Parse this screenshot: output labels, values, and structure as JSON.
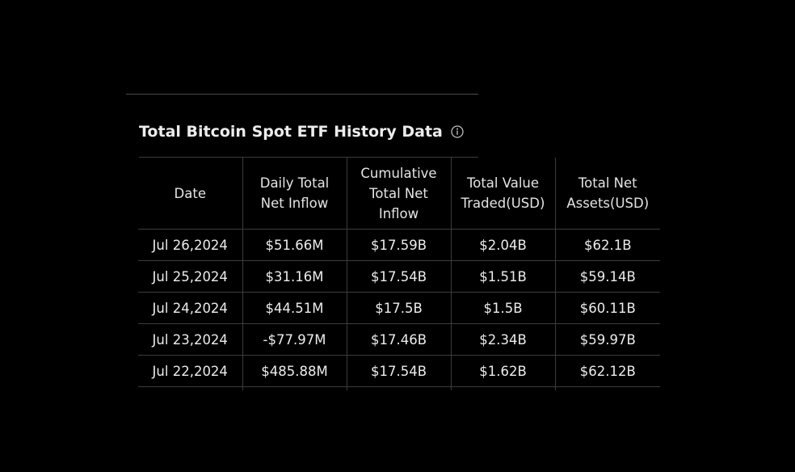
{
  "widget": {
    "title": "Total Bitcoin Spot ETF History Data",
    "info_icon": "info-circle-icon"
  },
  "table": {
    "headers": [
      "Date",
      "Daily Total Net Inflow",
      "Cumulative Total Net Inflow",
      "Total Value Traded(USD)",
      "Total Net Assets(USD)"
    ],
    "rows": [
      {
        "date": "Jul 26,2024",
        "daily_net_inflow": "$51.66M",
        "inflow_sign": "positive",
        "cumulative_net_inflow": "$17.59B",
        "total_value_traded": "$2.04B",
        "total_net_assets": "$62.1B"
      },
      {
        "date": "Jul 25,2024",
        "daily_net_inflow": "$31.16M",
        "inflow_sign": "positive",
        "cumulative_net_inflow": "$17.54B",
        "total_value_traded": "$1.51B",
        "total_net_assets": "$59.14B"
      },
      {
        "date": "Jul 24,2024",
        "daily_net_inflow": "$44.51M",
        "inflow_sign": "positive",
        "cumulative_net_inflow": "$17.5B",
        "total_value_traded": "$1.5B",
        "total_net_assets": "$60.11B"
      },
      {
        "date": "Jul 23,2024",
        "daily_net_inflow": "-$77.97M",
        "inflow_sign": "negative",
        "cumulative_net_inflow": "$17.46B",
        "total_value_traded": "$2.34B",
        "total_net_assets": "$59.97B"
      },
      {
        "date": "Jul 22,2024",
        "daily_net_inflow": "$485.88M",
        "inflow_sign": "positive",
        "cumulative_net_inflow": "$17.54B",
        "total_value_traded": "$1.62B",
        "total_net_assets": "$62.12B"
      }
    ]
  },
  "colors": {
    "background": "#000000",
    "positive": "#27c155",
    "negative": "#f0483e",
    "text": "#ececec",
    "grid": "#3c3c3c"
  }
}
